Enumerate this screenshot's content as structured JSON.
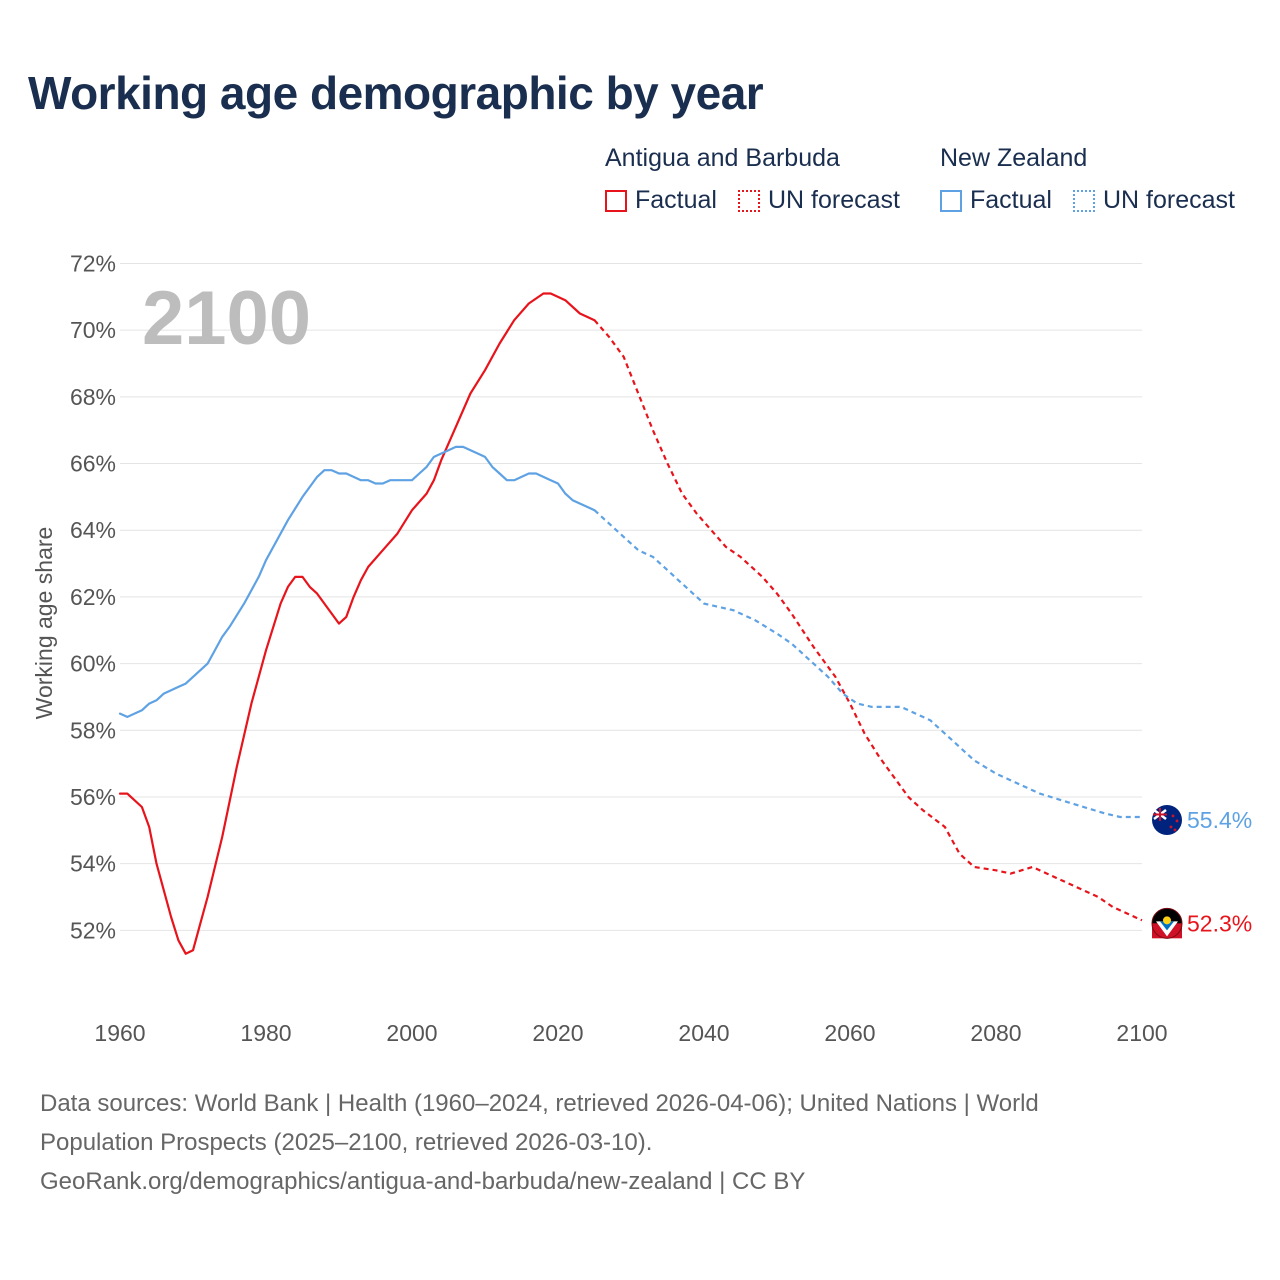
{
  "title": "Working age demographic by year",
  "legend": {
    "groups": [
      {
        "name": "Antigua and Barbuda",
        "factual": "Factual",
        "forecast": "UN forecast",
        "color": "#e8141c"
      },
      {
        "name": "New Zealand",
        "factual": "Factual",
        "forecast": "UN forecast",
        "color": "#5fa2e4"
      }
    ]
  },
  "chart_data": {
    "type": "line",
    "title": "Working age demographic by year",
    "xlabel": "",
    "ylabel": "Working age share",
    "xlim": [
      1960,
      2100
    ],
    "ylim": [
      50,
      72
    ],
    "x_ticks": [
      1960,
      1980,
      2000,
      2020,
      2040,
      2060,
      2080,
      2100
    ],
    "y_ticks": [
      52,
      54,
      56,
      58,
      60,
      62,
      64,
      66,
      68,
      70,
      72
    ],
    "tick_suffix": "%",
    "year_label": "2100",
    "factual_until": 2024,
    "series": [
      {
        "name": "Antigua and Barbuda",
        "color": "#e8141c",
        "end_label": "52.3%",
        "points": [
          [
            1960,
            56.1
          ],
          [
            1961,
            56.1
          ],
          [
            1963,
            55.7
          ],
          [
            1964,
            55.1
          ],
          [
            1965,
            54.0
          ],
          [
            1966,
            53.2
          ],
          [
            1967,
            52.4
          ],
          [
            1968,
            51.7
          ],
          [
            1969,
            51.3
          ],
          [
            1970,
            51.4
          ],
          [
            1971,
            52.2
          ],
          [
            1972,
            53.0
          ],
          [
            1974,
            54.8
          ],
          [
            1976,
            56.9
          ],
          [
            1978,
            58.8
          ],
          [
            1980,
            60.4
          ],
          [
            1982,
            61.8
          ],
          [
            1983,
            62.3
          ],
          [
            1984,
            62.6
          ],
          [
            1985,
            62.6
          ],
          [
            1986,
            62.3
          ],
          [
            1987,
            62.1
          ],
          [
            1988,
            61.8
          ],
          [
            1989,
            61.5
          ],
          [
            1990,
            61.2
          ],
          [
            1991,
            61.4
          ],
          [
            1992,
            62.0
          ],
          [
            1993,
            62.5
          ],
          [
            1994,
            62.9
          ],
          [
            1996,
            63.4
          ],
          [
            1998,
            63.9
          ],
          [
            2000,
            64.6
          ],
          [
            2002,
            65.1
          ],
          [
            2003,
            65.5
          ],
          [
            2004,
            66.1
          ],
          [
            2006,
            67.1
          ],
          [
            2008,
            68.1
          ],
          [
            2010,
            68.8
          ],
          [
            2012,
            69.6
          ],
          [
            2014,
            70.3
          ],
          [
            2016,
            70.8
          ],
          [
            2018,
            71.1
          ],
          [
            2019,
            71.1
          ],
          [
            2021,
            70.9
          ],
          [
            2023,
            70.5
          ],
          [
            2025,
            70.3
          ],
          [
            2027,
            69.8
          ],
          [
            2029,
            69.2
          ],
          [
            2031,
            68.1
          ],
          [
            2033,
            67.0
          ],
          [
            2035,
            66.0
          ],
          [
            2037,
            65.1
          ],
          [
            2039,
            64.5
          ],
          [
            2041,
            64.0
          ],
          [
            2043,
            63.5
          ],
          [
            2045,
            63.2
          ],
          [
            2048,
            62.6
          ],
          [
            2050,
            62.1
          ],
          [
            2052,
            61.5
          ],
          [
            2055,
            60.5
          ],
          [
            2058,
            59.6
          ],
          [
            2060,
            58.8
          ],
          [
            2062,
            57.9
          ],
          [
            2064,
            57.2
          ],
          [
            2066,
            56.6
          ],
          [
            2068,
            56.0
          ],
          [
            2070,
            55.6
          ],
          [
            2073,
            55.1
          ],
          [
            2075,
            54.3
          ],
          [
            2077,
            53.9
          ],
          [
            2080,
            53.8
          ],
          [
            2082,
            53.7
          ],
          [
            2085,
            53.9
          ],
          [
            2088,
            53.6
          ],
          [
            2091,
            53.3
          ],
          [
            2094,
            53.0
          ],
          [
            2096,
            52.7
          ],
          [
            2098,
            52.5
          ],
          [
            2100,
            52.3
          ]
        ]
      },
      {
        "name": "New Zealand",
        "color": "#5fa2e4",
        "end_label": "55.4%",
        "points": [
          [
            1960,
            58.5
          ],
          [
            1961,
            58.4
          ],
          [
            1963,
            58.6
          ],
          [
            1964,
            58.8
          ],
          [
            1965,
            58.9
          ],
          [
            1966,
            59.1
          ],
          [
            1968,
            59.3
          ],
          [
            1969,
            59.4
          ],
          [
            1970,
            59.6
          ],
          [
            1972,
            60.0
          ],
          [
            1974,
            60.8
          ],
          [
            1975,
            61.1
          ],
          [
            1977,
            61.8
          ],
          [
            1979,
            62.6
          ],
          [
            1980,
            63.1
          ],
          [
            1981,
            63.5
          ],
          [
            1983,
            64.3
          ],
          [
            1985,
            65.0
          ],
          [
            1986,
            65.3
          ],
          [
            1987,
            65.6
          ],
          [
            1988,
            65.8
          ],
          [
            1989,
            65.8
          ],
          [
            1990,
            65.7
          ],
          [
            1991,
            65.7
          ],
          [
            1993,
            65.5
          ],
          [
            1994,
            65.5
          ],
          [
            1995,
            65.4
          ],
          [
            1996,
            65.4
          ],
          [
            1997,
            65.5
          ],
          [
            1999,
            65.5
          ],
          [
            2000,
            65.5
          ],
          [
            2001,
            65.7
          ],
          [
            2002,
            65.9
          ],
          [
            2003,
            66.2
          ],
          [
            2005,
            66.4
          ],
          [
            2006,
            66.5
          ],
          [
            2007,
            66.5
          ],
          [
            2009,
            66.3
          ],
          [
            2010,
            66.2
          ],
          [
            2011,
            65.9
          ],
          [
            2012,
            65.7
          ],
          [
            2013,
            65.5
          ],
          [
            2014,
            65.5
          ],
          [
            2016,
            65.7
          ],
          [
            2017,
            65.7
          ],
          [
            2018,
            65.6
          ],
          [
            2019,
            65.5
          ],
          [
            2020,
            65.4
          ],
          [
            2021,
            65.1
          ],
          [
            2022,
            64.9
          ],
          [
            2024,
            64.7
          ],
          [
            2025,
            64.6
          ],
          [
            2027,
            64.2
          ],
          [
            2029,
            63.8
          ],
          [
            2031,
            63.4
          ],
          [
            2033,
            63.2
          ],
          [
            2035,
            62.8
          ],
          [
            2037,
            62.4
          ],
          [
            2039,
            62.0
          ],
          [
            2040,
            61.8
          ],
          [
            2042,
            61.7
          ],
          [
            2044,
            61.6
          ],
          [
            2047,
            61.3
          ],
          [
            2050,
            60.9
          ],
          [
            2052,
            60.6
          ],
          [
            2055,
            60.0
          ],
          [
            2057,
            59.6
          ],
          [
            2059,
            59.1
          ],
          [
            2061,
            58.8
          ],
          [
            2063,
            58.7
          ],
          [
            2065,
            58.7
          ],
          [
            2067,
            58.7
          ],
          [
            2069,
            58.5
          ],
          [
            2071,
            58.3
          ],
          [
            2073,
            57.9
          ],
          [
            2075,
            57.5
          ],
          [
            2077,
            57.1
          ],
          [
            2080,
            56.7
          ],
          [
            2083,
            56.4
          ],
          [
            2086,
            56.1
          ],
          [
            2089,
            55.9
          ],
          [
            2092,
            55.7
          ],
          [
            2095,
            55.5
          ],
          [
            2097,
            55.4
          ],
          [
            2100,
            55.4
          ]
        ]
      }
    ]
  },
  "footer": {
    "line1": "Data sources: World Bank | Health (1960–2024, retrieved 2026-04-06); United Nations | World",
    "line2": "Population Prospects (2025–2100, retrieved 2026-03-10).",
    "line3": "GeoRank.org/demographics/antigua-and-barbuda/new-zealand | CC BY"
  }
}
